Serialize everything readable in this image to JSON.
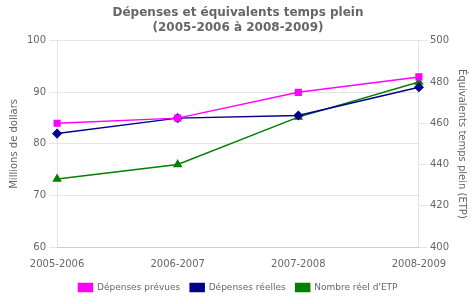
{
  "chart_data": {
    "type": "line",
    "title": "Dépenses et équivalents temps plein",
    "subtitle": "(2005-2006 à 2008-2009)",
    "categories": [
      "2005-2006",
      "2006-2007",
      "2007-2008",
      "2008-2009"
    ],
    "series": [
      {
        "name": "Dépenses prévues",
        "color": "#ff00ff",
        "marker": "square",
        "values": [
          84.0,
          85.0,
          90.0,
          93.0
        ]
      },
      {
        "name": "Dépenses réelles",
        "color": "#00008b",
        "marker": "diamond",
        "values": [
          82.0,
          85.0,
          85.5,
          91.0
        ]
      },
      {
        "name": "Nombre réel d'ETP",
        "color": "#008000",
        "marker": "triangle",
        "axis": "y2",
        "values": [
          433,
          440,
          463,
          480
        ]
      }
    ],
    "ylabel": "Millions de dollars",
    "y2label": "Équivalents temps plein (ETP)",
    "ylim": [
      60,
      100
    ],
    "yticks": [
      60,
      70,
      80,
      90,
      100
    ],
    "y2lim": [
      400,
      500
    ],
    "y2ticks": [
      400,
      420,
      440,
      460,
      480,
      500
    ],
    "grid": true,
    "legend": "bottom"
  }
}
